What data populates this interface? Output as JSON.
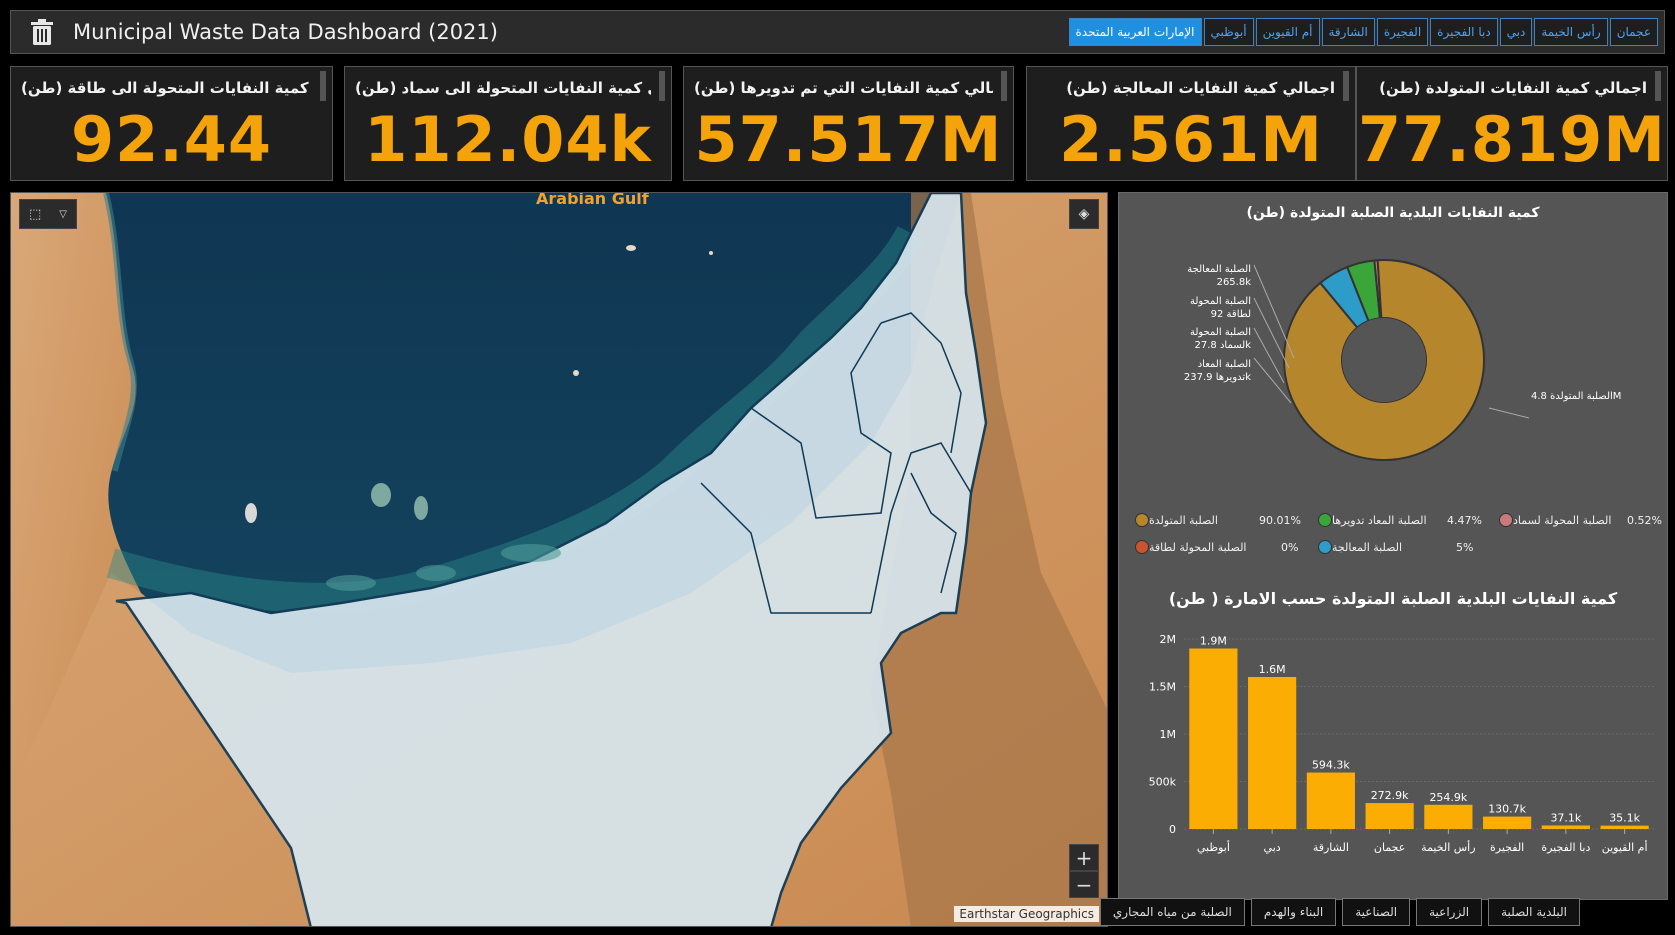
{
  "header": {
    "title": "Municipal Waste Data Dashboard (2021)",
    "icon": "trash-icon",
    "emirate_tabs": [
      {
        "label": "عجمان",
        "active": false
      },
      {
        "label": "رأس الخيمة",
        "active": false
      },
      {
        "label": "دبي",
        "active": false
      },
      {
        "label": "دبا الفجيرة",
        "active": false
      },
      {
        "label": "الفجيرة",
        "active": false
      },
      {
        "label": "الشارقة",
        "active": false
      },
      {
        "label": "أم القيوين",
        "active": false
      },
      {
        "label": "أبوظبي",
        "active": false
      },
      {
        "label": "الإمارات العربية المتحدة",
        "active": true
      }
    ]
  },
  "kpis": [
    {
      "label": "اجمالي كمية النفايات المتولدة (طن)",
      "value": "77.819M"
    },
    {
      "label": "اجمالي كمية النفايات المعالجة (طن)",
      "value": "2.561M"
    },
    {
      "label": "اجمالي كمية النفايات التي تم تدويرها (طن)",
      "value": "57.517M"
    },
    {
      "label": "اجمالي كمية النفايات المتحولة الى سماد (طن)",
      "value": "112.04k"
    },
    {
      "label": "اجمالي كمية النفايات المتحولة الى طاقة (طن)",
      "value": "92.44"
    }
  ],
  "map": {
    "water_label": "Arabian Gulf",
    "attribution": "Earthstar Geographics",
    "zoom_in": "+",
    "zoom_out": "−"
  },
  "donut": {
    "title": "كمية النفايات البلدية الصلبة المتولدة (طن)",
    "callouts": [
      {
        "line1": "الصلبة المعالجة",
        "line2": "265.8k"
      },
      {
        "line1": "الصلبة المحولة",
        "line2": "لطاقة 92"
      },
      {
        "line1": "الصلبة المحولة",
        "line2": "لسماد 27.8k"
      },
      {
        "line1": "الصلبة المعاد",
        "line2": "تدويرها 237.9k"
      }
    ],
    "main_callout": "الصلبة المتولدة 4.8M",
    "legend": [
      {
        "label": "الصلبة المتولدة",
        "pct": "90.01%",
        "color": "#b5862b"
      },
      {
        "label": "الصلبة المعاد تدويرها",
        "pct": "4.47%",
        "color": "#3aa63a"
      },
      {
        "label": "الصلبة المحولة لسماد",
        "pct": "0.52%",
        "color": "#c97b7b"
      },
      {
        "label": "الصلبة المحولة لطاقة",
        "pct": "0%",
        "color": "#c9542d"
      },
      {
        "label": "الصلبة المعالجة",
        "pct": "5%",
        "color": "#2d9cc9"
      }
    ]
  },
  "chart_data": {
    "type": "bar",
    "title": "كمية النفايات البلدية الصلبة المتولدة حسب الامارة ( طن)",
    "categories": [
      "أبوظبي",
      "دبي",
      "الشارقة",
      "عجمان",
      "رأس الخيمة",
      "الفجيرة",
      "دبا الفجيرة",
      "أم القيوين"
    ],
    "values": [
      1900000,
      1600000,
      594300,
      272900,
      254900,
      130700,
      37100,
      35100
    ],
    "data_labels": [
      "1.9M",
      "1.6M",
      "594.3k",
      "272.9k",
      "254.9k",
      "130.7k",
      "37.1k",
      "35.1k"
    ],
    "yticks": [
      "0",
      "500k",
      "1M",
      "1.5M",
      "2M"
    ],
    "ylim": [
      0,
      2000000
    ],
    "color": "#fcad04",
    "grid": true
  },
  "donut_data": {
    "type": "pie",
    "labels": [
      "الصلبة المتولدة",
      "الصلبة المعاد تدويرها",
      "الصلبة المحولة لسماد",
      "الصلبة المحولة لطاقة",
      "الصلبة المعالجة"
    ],
    "values": [
      90.01,
      4.47,
      0.52,
      0,
      5
    ]
  },
  "bottom_tabs": [
    {
      "label": "البلدية الصلبة",
      "active": true
    },
    {
      "label": "الزراعية",
      "active": false
    },
    {
      "label": "الصناعية",
      "active": false
    },
    {
      "label": "البناء والهدم",
      "active": false
    },
    {
      "label": "الصلبة من مياه المجاري",
      "active": false
    }
  ]
}
